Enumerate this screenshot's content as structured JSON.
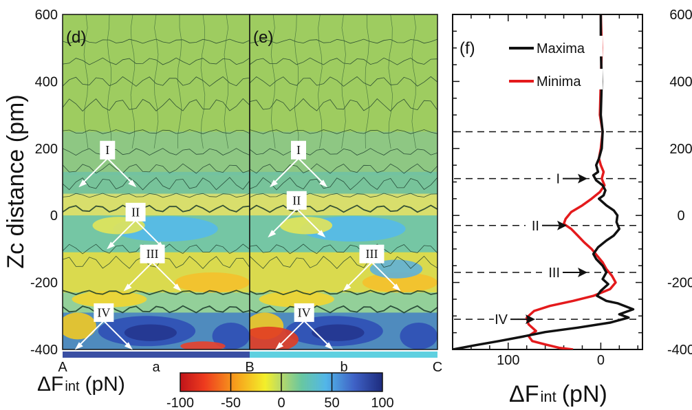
{
  "chart_data": [
    {
      "type": "heatmap",
      "panels": [
        "(d)",
        "(e)"
      ],
      "ylabel": "Zc distance (pm)",
      "yticks": [
        -400,
        -200,
        0,
        200,
        400,
        600
      ],
      "ylim": [
        -400,
        600
      ],
      "x_markers": [
        "A",
        "B",
        "C"
      ],
      "segments": [
        {
          "label": "a",
          "color": "#3a4fa3"
        },
        {
          "label": "b",
          "color": "#5fd0e0"
        }
      ],
      "colorbar": {
        "label_main": "ΔF",
        "label_sub": "int",
        "label_unit": "(pN)",
        "ticks": [
          -100,
          -50,
          0,
          50,
          100
        ],
        "range": [
          -100,
          100
        ]
      },
      "annotations": [
        "I",
        "II",
        "III",
        "IV"
      ],
      "band_levels": {
        "I": 110,
        "II": -30,
        "III": -170,
        "IV": -310
      }
    },
    {
      "type": "line",
      "panel": "(f)",
      "xlabel_main": "ΔF",
      "xlabel_sub": "int",
      "xlabel_unit": "(pN)",
      "xticks": [
        100,
        0
      ],
      "xlim": [
        160,
        -45
      ],
      "ylim": [
        -400,
        600
      ],
      "yticks": [
        -400,
        -200,
        0,
        200,
        400,
        600
      ],
      "legend_position": "top",
      "dashed_levels": [
        250,
        110,
        -30,
        -170,
        -310
      ],
      "arrow_labels": [
        "I",
        "II",
        "III",
        "IV"
      ],
      "series": [
        {
          "name": "Maxima",
          "color": "#111111",
          "points": [
            [
              0,
              600
            ],
            [
              0,
              500
            ],
            [
              -1,
              400
            ],
            [
              0,
              300
            ],
            [
              -2,
              250
            ],
            [
              -1,
              200
            ],
            [
              2,
              170
            ],
            [
              5,
              150
            ],
            [
              3,
              130
            ],
            [
              8,
              120
            ],
            [
              5,
              105
            ],
            [
              -2,
              90
            ],
            [
              -5,
              75
            ],
            [
              -3,
              60
            ],
            [
              2,
              50
            ],
            [
              -6,
              30
            ],
            [
              -14,
              15
            ],
            [
              -18,
              0
            ],
            [
              -17,
              -20
            ],
            [
              -20,
              -40
            ],
            [
              -14,
              -60
            ],
            [
              -6,
              -75
            ],
            [
              3,
              -95
            ],
            [
              8,
              -115
            ],
            [
              5,
              -130
            ],
            [
              -2,
              -150
            ],
            [
              -6,
              -170
            ],
            [
              -2,
              -190
            ],
            [
              -8,
              -205
            ],
            [
              0,
              -225
            ],
            [
              4,
              -240
            ],
            [
              -6,
              -255
            ],
            [
              -18,
              -262
            ],
            [
              -35,
              -280
            ],
            [
              -20,
              -295
            ],
            [
              -30,
              -305
            ],
            [
              -10,
              -320
            ],
            [
              25,
              -335
            ],
            [
              60,
              -348
            ],
            [
              85,
              -362
            ],
            [
              110,
              -375
            ],
            [
              135,
              -387
            ],
            [
              160,
              -400
            ]
          ]
        },
        {
          "name": "Minima",
          "color": "#e41a1c",
          "points": [
            [
              0,
              600
            ],
            [
              -1,
              500
            ],
            [
              0,
              400
            ],
            [
              1,
              300
            ],
            [
              -2,
              250
            ],
            [
              0,
              200
            ],
            [
              2,
              170
            ],
            [
              0,
              150
            ],
            [
              -3,
              130
            ],
            [
              -1,
              110
            ],
            [
              -4,
              90
            ],
            [
              1,
              70
            ],
            [
              10,
              50
            ],
            [
              20,
              30
            ],
            [
              32,
              10
            ],
            [
              38,
              -10
            ],
            [
              40,
              -25
            ],
            [
              32,
              -40
            ],
            [
              25,
              -60
            ],
            [
              18,
              -80
            ],
            [
              10,
              -100
            ],
            [
              4,
              -120
            ],
            [
              -2,
              -140
            ],
            [
              -6,
              -160
            ],
            [
              -12,
              -180
            ],
            [
              -16,
              -200
            ],
            [
              -10,
              -220
            ],
            [
              8,
              -240
            ],
            [
              30,
              -255
            ],
            [
              55,
              -270
            ],
            [
              72,
              -285
            ],
            [
              80,
              -305
            ],
            [
              78,
              -325
            ],
            [
              70,
              -345
            ],
            [
              78,
              -360
            ],
            [
              74,
              -375
            ],
            [
              60,
              -385
            ],
            [
              45,
              -395
            ],
            [
              30,
              -400
            ]
          ]
        }
      ]
    }
  ]
}
